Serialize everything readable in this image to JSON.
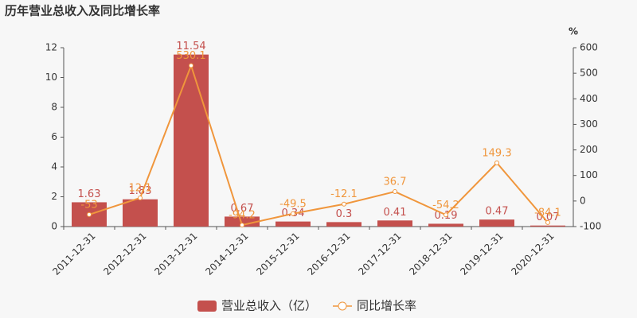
{
  "chart_data": {
    "type": "combo",
    "title": "历年营业总收入及同比增长率",
    "categories": [
      "2011-12-31",
      "2012-12-31",
      "2013-12-31",
      "2014-12-31",
      "2015-12-31",
      "2016-12-31",
      "2017-12-31",
      "2018-12-31",
      "2019-12-31",
      "2020-12-31"
    ],
    "series": [
      {
        "name": "营业总收入（亿）",
        "type": "bar",
        "color": "#c4504d",
        "values": [
          1.63,
          1.83,
          11.54,
          0.67,
          0.34,
          0.3,
          0.41,
          0.19,
          0.47,
          0.07
        ]
      },
      {
        "name": "同比增长率",
        "type": "line",
        "color": "#f0963c",
        "axis": "y2",
        "values": [
          -53,
          12.1,
          530.1,
          -94.2,
          -49.5,
          -12.1,
          36.7,
          -54.2,
          149.3,
          -84.1
        ]
      }
    ],
    "ylim": [
      0,
      12
    ],
    "yticks": [
      0,
      2,
      4,
      6,
      8,
      10,
      12
    ],
    "y2lim": [
      -100,
      600
    ],
    "y2ticks": [
      -100,
      0,
      100,
      200,
      300,
      400,
      500,
      600
    ],
    "y2label": "%",
    "legend": "bottom"
  }
}
